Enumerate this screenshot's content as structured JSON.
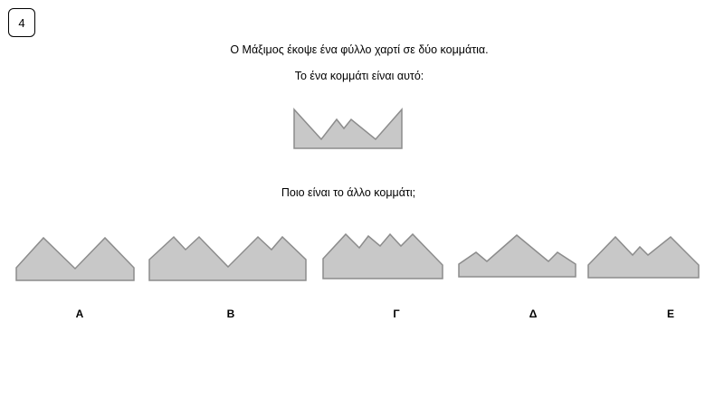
{
  "question_number": "4",
  "text_line_1": "Ο Μάξιμος έκοψε ένα φύλλο χαρτί σε δύο κομμάτια.",
  "text_line_2": "Το ένα κομμάτι είναι αυτό:",
  "text_line_3": "Ποιο είναι το άλλο κομμάτι;",
  "options": [
    "Α",
    "Β",
    "Γ",
    "Δ",
    "Ε"
  ],
  "colors": {
    "fill": "#c8c8c8",
    "stroke": "#8c8c8c"
  }
}
